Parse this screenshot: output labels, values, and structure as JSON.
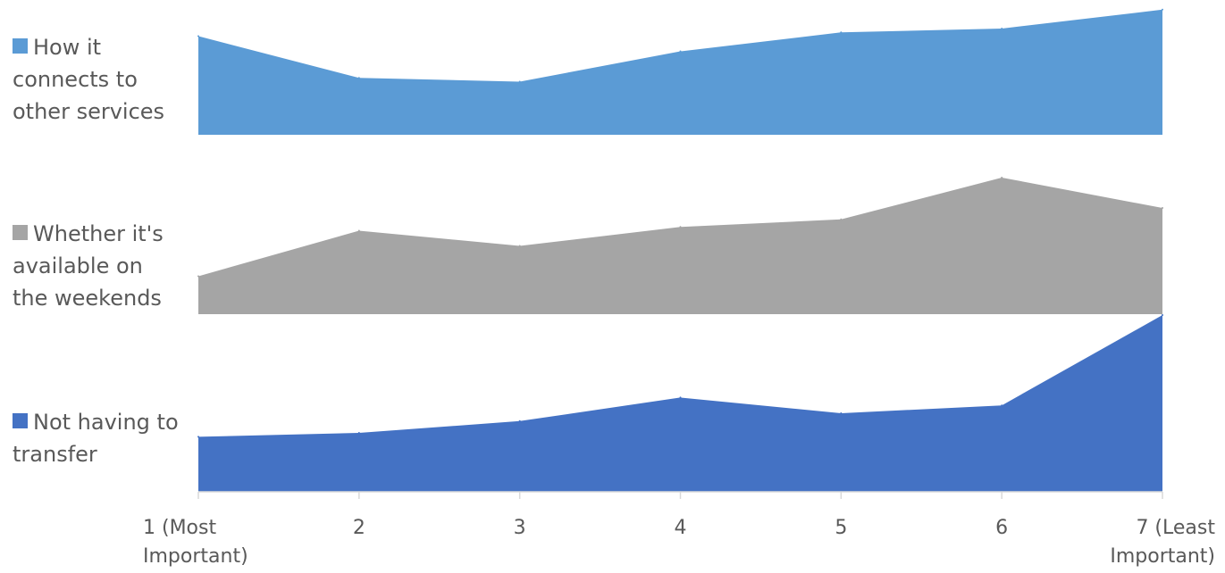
{
  "chart_data": {
    "type": "area",
    "x": [
      1,
      2,
      3,
      4,
      5,
      6,
      7
    ],
    "tick_labels": [
      [
        "1 (Most",
        "Important)"
      ],
      [
        "2"
      ],
      [
        "3"
      ],
      [
        "4"
      ],
      [
        "5"
      ],
      [
        "6"
      ],
      [
        "7 (Least",
        "Important)"
      ]
    ],
    "series": [
      {
        "name": "How it connects to other services",
        "color": "#5B9BD5",
        "values": [
          13,
          7.5,
          7,
          11,
          13.5,
          14,
          16.5
        ]
      },
      {
        "name": "Whether it's available on the weekends",
        "color": "#A5A5A5",
        "values": [
          5,
          11,
          9,
          11.5,
          12.5,
          18,
          14
        ]
      },
      {
        "name": "Not having to transfer",
        "color": "#4472C4",
        "values": [
          7,
          7.5,
          9,
          12,
          10,
          11,
          22.5
        ]
      }
    ],
    "legend_position": "left",
    "grid": false
  }
}
